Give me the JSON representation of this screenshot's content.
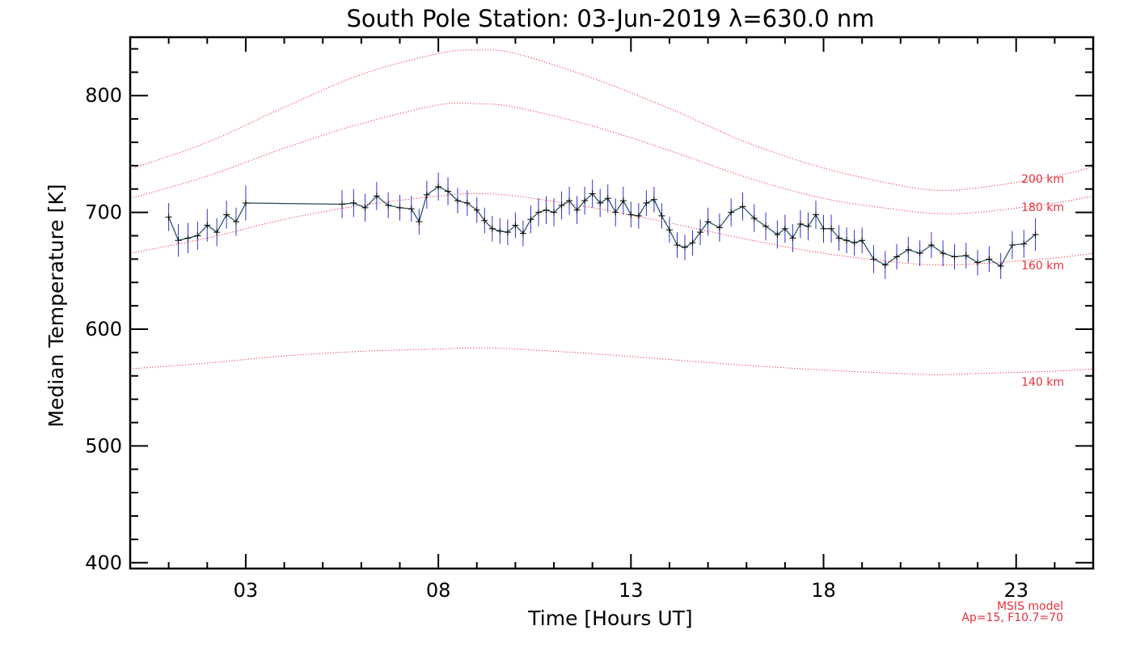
{
  "chart_data": {
    "type": "line",
    "title": "South Pole Station: 03-Jun-2019 λ=630.0 nm",
    "xlabel": "Time [Hours UT]",
    "ylabel": "Median Temperature [K]",
    "xlim": [
      0,
      25
    ],
    "ylim": [
      395,
      850
    ],
    "x_ticks": [
      3,
      8,
      13,
      18,
      23
    ],
    "x_tick_labels": [
      "03",
      "08",
      "13",
      "18",
      "23"
    ],
    "y_ticks": [
      400,
      500,
      600,
      700,
      800
    ],
    "y_tick_labels": [
      "400",
      "500",
      "600",
      "700",
      "800"
    ],
    "colors": {
      "data_line": "#1e4a5a",
      "error_bar": "#3030d8",
      "marker": "#000000",
      "model": "#e8303a",
      "axis": "#000000"
    },
    "series": [
      {
        "name": "Median Temperature",
        "x": [
          1.0,
          1.25,
          1.5,
          1.75,
          2.0,
          2.25,
          2.5,
          2.75,
          3.0,
          5.5,
          5.8,
          6.1,
          6.4,
          6.7,
          7.0,
          7.3,
          7.5,
          7.7,
          8.0,
          8.25,
          8.5,
          8.75,
          9.0,
          9.2,
          9.4,
          9.6,
          9.8,
          10.0,
          10.2,
          10.4,
          10.6,
          10.8,
          11.0,
          11.2,
          11.4,
          11.6,
          11.8,
          12.0,
          12.2,
          12.4,
          12.6,
          12.8,
          13.0,
          13.2,
          13.4,
          13.6,
          13.8,
          14.0,
          14.2,
          14.4,
          14.6,
          14.8,
          15.0,
          15.3,
          15.6,
          15.9,
          16.2,
          16.5,
          16.8,
          17.0,
          17.2,
          17.4,
          17.6,
          17.8,
          18.0,
          18.2,
          18.4,
          18.6,
          18.8,
          19.0,
          19.3,
          19.6,
          19.9,
          20.2,
          20.5,
          20.8,
          21.1,
          21.4,
          21.7,
          22.0,
          22.3,
          22.6,
          22.9,
          23.2,
          23.5
        ],
        "y": [
          696,
          676,
          678,
          680,
          689,
          683,
          698,
          692,
          708,
          707,
          708,
          704,
          714,
          706,
          704,
          703,
          692,
          715,
          722,
          718,
          710,
          708,
          702,
          693,
          686,
          684,
          683,
          689,
          682,
          694,
          700,
          702,
          700,
          706,
          710,
          702,
          710,
          716,
          708,
          712,
          700,
          710,
          698,
          697,
          708,
          711,
          697,
          685,
          672,
          670,
          674,
          683,
          692,
          687,
          700,
          705,
          695,
          688,
          681,
          686,
          678,
          690,
          688,
          698,
          686,
          686,
          678,
          676,
          674,
          676,
          660,
          655,
          662,
          668,
          665,
          672,
          665,
          662,
          663,
          657,
          660,
          654,
          672,
          673,
          681
        ],
        "err": [
          12,
          14,
          13,
          12,
          14,
          12,
          12,
          12,
          15,
          12,
          12,
          12,
          12,
          11,
          11,
          11,
          11,
          12,
          12,
          12,
          11,
          11,
          11,
          11,
          11,
          11,
          11,
          11,
          11,
          12,
          12,
          12,
          12,
          12,
          12,
          12,
          12,
          12,
          12,
          12,
          12,
          12,
          11,
          11,
          11,
          11,
          11,
          11,
          11,
          11,
          11,
          11,
          12,
          12,
          12,
          12,
          12,
          12,
          12,
          12,
          12,
          12,
          12,
          12,
          12,
          12,
          11,
          11,
          11,
          11,
          12,
          12,
          11,
          11,
          11,
          11,
          11,
          11,
          11,
          11,
          11,
          11,
          12,
          12,
          14
        ]
      }
    ],
    "model_curves": [
      {
        "label": "200 km",
        "x": [
          0,
          2,
          4,
          6,
          8,
          9,
          10,
          12,
          14,
          16,
          18,
          20,
          21,
          22,
          24,
          25
        ],
        "y": [
          737,
          760,
          790,
          818,
          836,
          839,
          836,
          815,
          789,
          760,
          738,
          723,
          719,
          721,
          731,
          739
        ]
      },
      {
        "label": "180 km",
        "x": [
          0,
          2,
          4,
          6,
          8,
          9,
          10,
          12,
          14,
          16,
          18,
          20,
          21,
          22,
          24,
          25
        ],
        "y": [
          712,
          731,
          755,
          776,
          792,
          793,
          790,
          774,
          753,
          730,
          712,
          702,
          699,
          700,
          708,
          714
        ]
      },
      {
        "label": "160 km",
        "x": [
          0,
          2,
          4,
          6,
          8,
          9,
          10,
          12,
          14,
          16,
          18,
          20,
          21,
          22,
          24,
          25
        ],
        "y": [
          665,
          678,
          694,
          706,
          714,
          716,
          714,
          704,
          691,
          677,
          665,
          657,
          655,
          656,
          661,
          665
        ]
      },
      {
        "label": "140 km",
        "x": [
          0,
          2,
          4,
          6,
          8,
          9,
          10,
          12,
          14,
          16,
          18,
          20,
          21,
          22,
          24,
          25
        ],
        "y": [
          566,
          571,
          577,
          581,
          583,
          584,
          583,
          579,
          574,
          569,
          565,
          562,
          561,
          562,
          564,
          566
        ]
      }
    ],
    "annotations": {
      "model_name": "MSIS model",
      "model_params": "Ap=15, F10.7=70"
    }
  }
}
